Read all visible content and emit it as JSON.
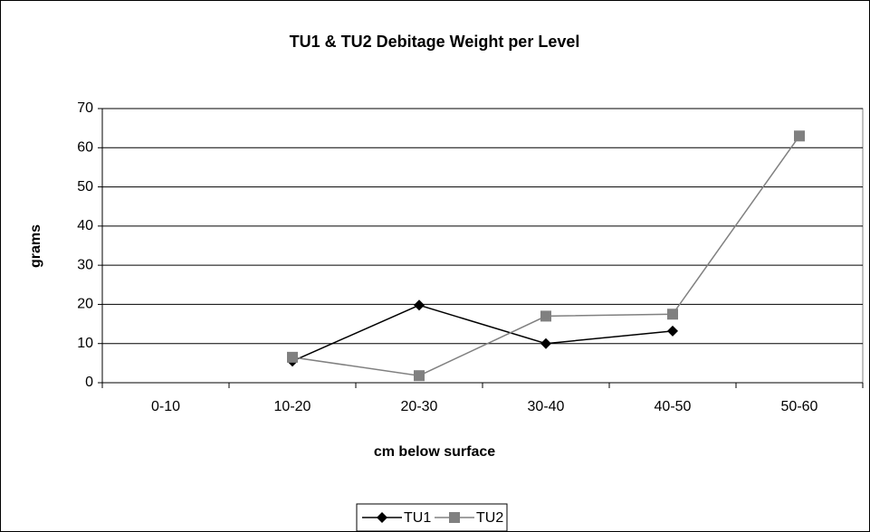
{
  "chart_data": {
    "type": "line",
    "title": "TU1 & TU2 Debitage Weight per Level",
    "x_label": "cm below surface",
    "y_label": "grams",
    "categories": [
      "0-10",
      "10-20",
      "20-30",
      "30-40",
      "40-50",
      "50-60"
    ],
    "series": [
      {
        "name": "TU1",
        "color": "#000000",
        "marker": "diamond",
        "values": [
          null,
          5.5,
          19.8,
          10,
          13.2,
          null
        ]
      },
      {
        "name": "TU2",
        "color": "#808080",
        "marker": "square",
        "values": [
          null,
          6.5,
          1.8,
          17,
          17.5,
          63
        ]
      }
    ],
    "ylim": [
      0,
      70
    ],
    "yticks": [
      0,
      10,
      20,
      30,
      40,
      50,
      60,
      70
    ],
    "grid": true,
    "legend": "bottom"
  }
}
